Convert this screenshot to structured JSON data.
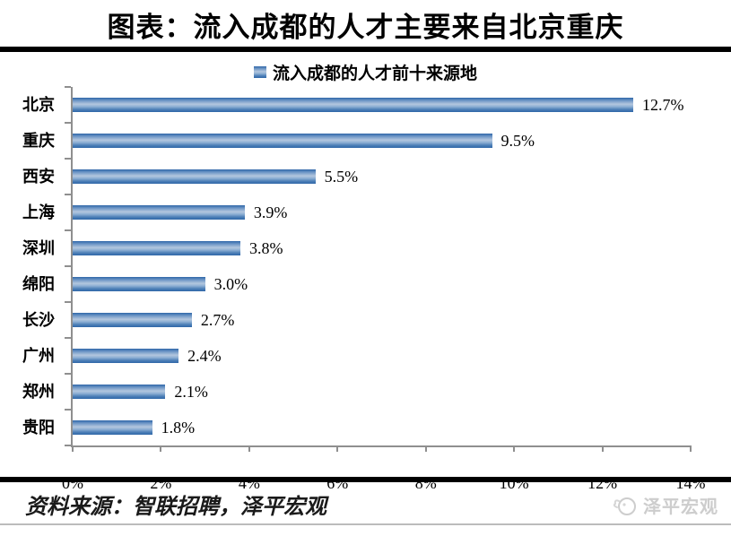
{
  "header": {
    "title": "图表：流入成都的人才主要来自北京重庆"
  },
  "chart_data": {
    "type": "bar",
    "orientation": "horizontal",
    "title": "流入成都的人才前十来源地",
    "legend_position": "top-center",
    "categories": [
      "北京",
      "重庆",
      "西安",
      "上海",
      "深圳",
      "绵阳",
      "长沙",
      "广州",
      "郑州",
      "贵阳"
    ],
    "values": [
      12.7,
      9.5,
      5.5,
      3.9,
      3.8,
      3.0,
      2.7,
      2.4,
      2.1,
      1.8
    ],
    "data_labels": [
      "12.7%",
      "9.5%",
      "5.5%",
      "3.9%",
      "3.8%",
      "3.0%",
      "2.7%",
      "2.4%",
      "2.1%",
      "1.8%"
    ],
    "xlim": [
      0,
      14
    ],
    "x_ticks": [
      "0%",
      "2%",
      "4%",
      "6%",
      "8%",
      "10%",
      "12%",
      "14%"
    ],
    "grid": "off",
    "bar_color": "#4f81bd",
    "bar_gradient_edge": "#2f67a8",
    "bar_gradient_mid": "#b3c6de",
    "axis_color": "#8f8f8f"
  },
  "footer": {
    "source": "资料来源：智联招聘，泽平宏观",
    "logo_text": "泽平宏观",
    "logo_color": "#cdcdcd"
  }
}
